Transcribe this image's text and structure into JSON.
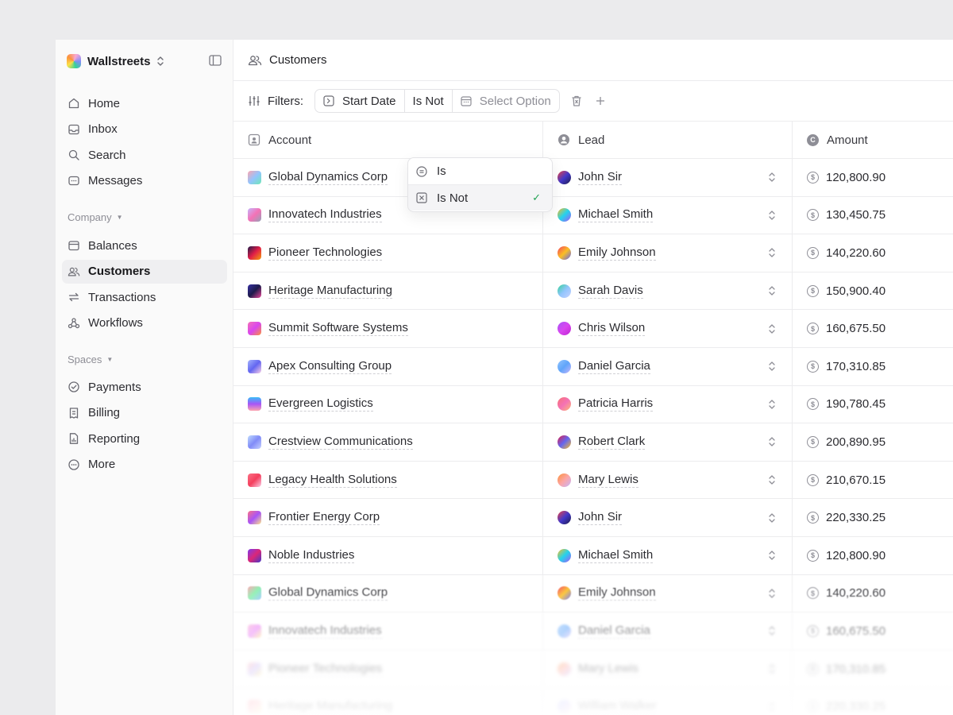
{
  "app": {
    "name": "Wallstreets",
    "page_title": "Customers"
  },
  "sidebar": {
    "primary": [
      {
        "label": "Home",
        "icon": "home-icon"
      },
      {
        "label": "Inbox",
        "icon": "inbox-icon"
      },
      {
        "label": "Search",
        "icon": "search-icon"
      },
      {
        "label": "Messages",
        "icon": "messages-icon"
      }
    ],
    "company_section": "Company",
    "company": [
      {
        "label": "Balances",
        "icon": "wallet-icon"
      },
      {
        "label": "Customers",
        "icon": "users-icon",
        "active": true
      },
      {
        "label": "Transactions",
        "icon": "transfer-icon"
      },
      {
        "label": "Workflows",
        "icon": "workflow-icon"
      }
    ],
    "spaces_section": "Spaces",
    "spaces": [
      {
        "label": "Payments",
        "icon": "check-circle-icon"
      },
      {
        "label": "Billing",
        "icon": "receipt-icon"
      },
      {
        "label": "Reporting",
        "icon": "report-icon"
      },
      {
        "label": "More",
        "icon": "more-icon"
      }
    ]
  },
  "filters": {
    "label": "Filters:",
    "field": "Start Date",
    "operator": "Is Not",
    "value_placeholder": "Select Option"
  },
  "dropdown": {
    "options": [
      "Is",
      "Is Not"
    ],
    "selected": "Is Not"
  },
  "table": {
    "columns": {
      "account": "Account",
      "lead": "Lead",
      "amount": "Amount"
    },
    "rows": [
      {
        "account": "Global Dynamics Corp",
        "lead": "John Sir",
        "amount": "120,800.90"
      },
      {
        "account": "Innovatech Industries",
        "lead": "Michael Smith",
        "amount": "130,450.75"
      },
      {
        "account": "Pioneer Technologies",
        "lead": "Emily Johnson",
        "amount": "140,220.60"
      },
      {
        "account": "Heritage Manufacturing",
        "lead": "Sarah Davis",
        "amount": "150,900.40"
      },
      {
        "account": "Summit Software Systems",
        "lead": "Chris Wilson",
        "amount": "160,675.50"
      },
      {
        "account": "Apex Consulting Group",
        "lead": "Daniel Garcia",
        "amount": "170,310.85"
      },
      {
        "account": "Evergreen Logistics",
        "lead": "Patricia Harris",
        "amount": "190,780.45"
      },
      {
        "account": "Crestview Communications",
        "lead": "Robert Clark",
        "amount": "200,890.95"
      },
      {
        "account": "Legacy Health Solutions",
        "lead": "Mary Lewis",
        "amount": "210,670.15"
      },
      {
        "account": "Frontier Energy Corp",
        "lead": "John Sir",
        "amount": "220,330.25"
      },
      {
        "account": "Noble Industries",
        "lead": "Michael Smith",
        "amount": "120,800.90"
      },
      {
        "account": "Global Dynamics Corp",
        "lead": "Emily Johnson",
        "amount": "140,220.60"
      },
      {
        "account": "Innovatech Industries",
        "lead": "Daniel Garcia",
        "amount": "160,675.50"
      },
      {
        "account": "Pioneer Technologies",
        "lead": "Mary Lewis",
        "amount": "170,310.85"
      },
      {
        "account": "Heritage Manufacturing",
        "lead": "William Walker",
        "amount": "220,330.25"
      }
    ]
  }
}
